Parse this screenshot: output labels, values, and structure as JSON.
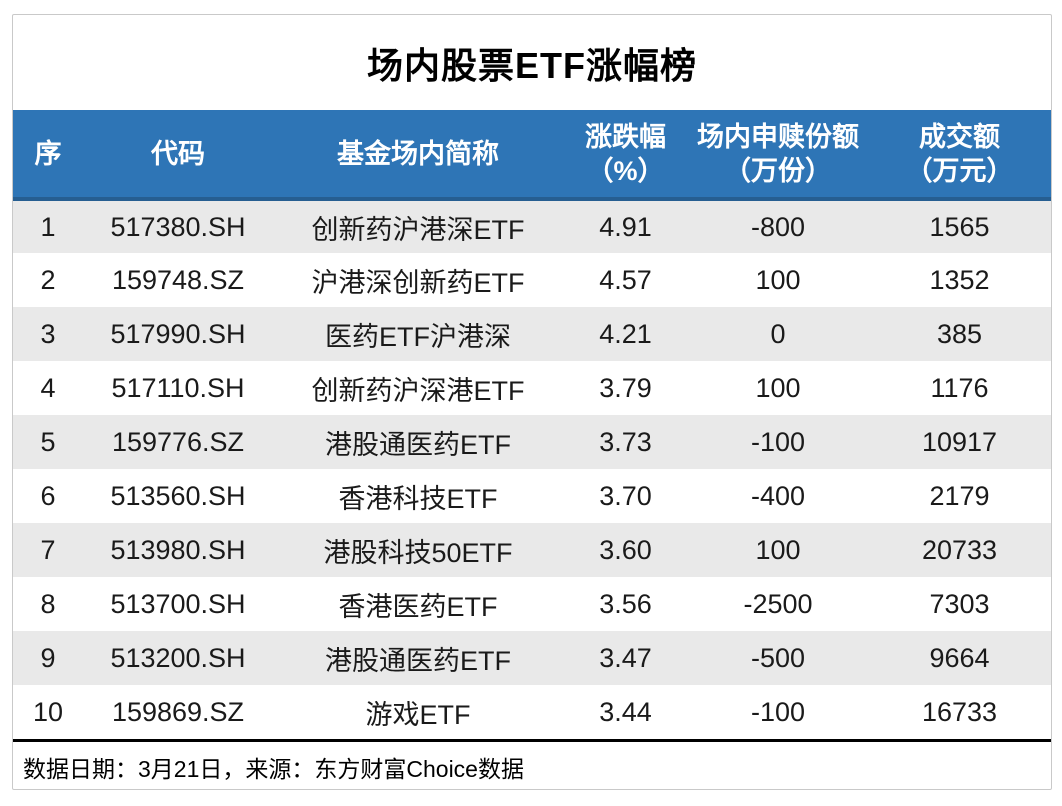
{
  "title": "场内股票ETF涨幅榜",
  "table": {
    "columns": [
      {
        "l1": "序",
        "l2": ""
      },
      {
        "l1": "代码",
        "l2": ""
      },
      {
        "l1": "基金场内简称",
        "l2": ""
      },
      {
        "l1": "涨跌幅",
        "l2": "（%）"
      },
      {
        "l1": "场内申赎份额",
        "l2": "（万份）"
      },
      {
        "l1": "成交额",
        "l2": "（万元）"
      }
    ],
    "rows": [
      [
        "1",
        "517380.SH",
        "创新药沪港深ETF",
        "4.91",
        "-800",
        "1565"
      ],
      [
        "2",
        "159748.SZ",
        "沪港深创新药ETF",
        "4.57",
        "100",
        "1352"
      ],
      [
        "3",
        "517990.SH",
        "医药ETF沪港深",
        "4.21",
        "0",
        "385"
      ],
      [
        "4",
        "517110.SH",
        "创新药沪深港ETF",
        "3.79",
        "100",
        "1176"
      ],
      [
        "5",
        "159776.SZ",
        "港股通医药ETF",
        "3.73",
        "-100",
        "10917"
      ],
      [
        "6",
        "513560.SH",
        "香港科技ETF",
        "3.70",
        "-400",
        "2179"
      ],
      [
        "7",
        "513980.SH",
        "港股科技50ETF",
        "3.60",
        "100",
        "20733"
      ],
      [
        "8",
        "513700.SH",
        "香港医药ETF",
        "3.56",
        "-2500",
        "7303"
      ],
      [
        "9",
        "513200.SH",
        "港股通医药ETF",
        "3.47",
        "-500",
        "9664"
      ],
      [
        "10",
        "159869.SZ",
        "游戏ETF",
        "3.44",
        "-100",
        "16733"
      ]
    ]
  },
  "footer": {
    "note": "数据日期：3月21日，来源：东方财富Choice数据"
  },
  "colors": {
    "header_bg": "#2E75B6",
    "header_underline": "#265E91",
    "row_stripe": "#E9E9E9",
    "footer_rule": "#000000",
    "frame_border": "#C9C9C9"
  },
  "chart_data": {
    "type": "table",
    "title": "场内股票ETF涨幅榜",
    "columns": [
      "序",
      "代码",
      "基金场内简称",
      "涨跌幅（%）",
      "场内申赎份额（万份）",
      "成交额（万元）"
    ],
    "rows": [
      [
        1,
        "517380.SH",
        "创新药沪港深ETF",
        4.91,
        -800,
        1565
      ],
      [
        2,
        "159748.SZ",
        "沪港深创新药ETF",
        4.57,
        100,
        1352
      ],
      [
        3,
        "517990.SH",
        "医药ETF沪港深",
        4.21,
        0,
        385
      ],
      [
        4,
        "517110.SH",
        "创新药沪深港ETF",
        3.79,
        100,
        1176
      ],
      [
        5,
        "159776.SZ",
        "港股通医药ETF",
        3.73,
        -100,
        10917
      ],
      [
        6,
        "513560.SH",
        "香港科技ETF",
        3.7,
        -400,
        2179
      ],
      [
        7,
        "513980.SH",
        "港股科技50ETF",
        3.6,
        100,
        20733
      ],
      [
        8,
        "513700.SH",
        "香港医药ETF",
        3.56,
        -2500,
        7303
      ],
      [
        9,
        "513200.SH",
        "港股通医药ETF",
        3.47,
        -500,
        9664
      ],
      [
        10,
        "159869.SZ",
        "游戏ETF",
        3.44,
        -100,
        16733
      ]
    ],
    "source_note": "数据日期：3月21日，来源：东方财富Choice数据"
  }
}
